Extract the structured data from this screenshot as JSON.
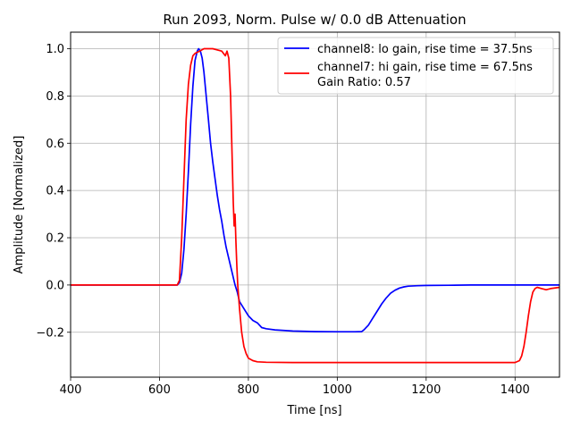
{
  "chart_data": {
    "type": "line",
    "title": "Run 2093, Norm. Pulse w/ 0.0 dB Attenuation",
    "xlabel": "Time [ns]",
    "ylabel": "Amplitude [Normalized]",
    "xlim": [
      400,
      1500
    ],
    "ylim": [
      -0.39,
      1.07
    ],
    "xticks": [
      400,
      600,
      800,
      1000,
      1200,
      1400
    ],
    "yticks": [
      -0.2,
      0.0,
      0.2,
      0.4,
      0.6,
      0.8,
      1.0
    ],
    "ytick_labels": [
      "−0.2",
      "0.0",
      "0.2",
      "0.4",
      "0.6",
      "0.8",
      "1.0"
    ],
    "grid": true,
    "legend_position": "top-right",
    "legend_extra": "Gain Ratio: 0.57",
    "series": [
      {
        "name": "channel8: lo gain, rise time = 37.5ns",
        "color": "#0000ff",
        "x": [
          400,
          600,
          640,
          645,
          650,
          655,
          660,
          665,
          670,
          675,
          680,
          685,
          688,
          692,
          696,
          700,
          705,
          710,
          715,
          720,
          725,
          730,
          735,
          740,
          745,
          750,
          755,
          760,
          765,
          770,
          775,
          780,
          790,
          800,
          810,
          820,
          830,
          840,
          860,
          900,
          950,
          1000,
          1040,
          1055,
          1060,
          1070,
          1080,
          1090,
          1100,
          1110,
          1120,
          1130,
          1140,
          1150,
          1160,
          1180,
          1200,
          1250,
          1300,
          1350,
          1400,
          1450,
          1500
        ],
        "y": [
          0.0,
          0.0,
          0.0,
          0.01,
          0.05,
          0.15,
          0.3,
          0.48,
          0.68,
          0.84,
          0.95,
          0.99,
          1.0,
          0.99,
          0.96,
          0.9,
          0.8,
          0.7,
          0.6,
          0.52,
          0.45,
          0.38,
          0.32,
          0.27,
          0.21,
          0.16,
          0.12,
          0.08,
          0.04,
          0.0,
          -0.03,
          -0.07,
          -0.1,
          -0.13,
          -0.15,
          -0.16,
          -0.18,
          -0.185,
          -0.19,
          -0.195,
          -0.197,
          -0.198,
          -0.198,
          -0.197,
          -0.19,
          -0.17,
          -0.14,
          -0.11,
          -0.08,
          -0.055,
          -0.035,
          -0.022,
          -0.013,
          -0.008,
          -0.005,
          -0.003,
          -0.002,
          -0.001,
          0.0,
          0.0,
          0.0,
          0.0,
          0.0
        ]
      },
      {
        "name": "channel7: hi gain, rise time = 67.5ns",
        "color": "#ff0000",
        "x": [
          400,
          600,
          640,
          645,
          650,
          655,
          660,
          665,
          670,
          675,
          680,
          690,
          700,
          720,
          740,
          748,
          752,
          756,
          760,
          764,
          766,
          768,
          770,
          772,
          774,
          776,
          778,
          780,
          785,
          790,
          795,
          800,
          810,
          820,
          840,
          900,
          1000,
          1100,
          1200,
          1300,
          1400,
          1410,
          1415,
          1420,
          1425,
          1430,
          1435,
          1440,
          1445,
          1450,
          1460,
          1470,
          1480,
          1500
        ],
        "y": [
          0.0,
          0.0,
          0.0,
          0.02,
          0.2,
          0.45,
          0.7,
          0.85,
          0.93,
          0.97,
          0.98,
          0.99,
          1.0,
          1.0,
          0.99,
          0.97,
          0.99,
          0.96,
          0.8,
          0.5,
          0.35,
          0.25,
          0.3,
          0.18,
          0.08,
          0.0,
          -0.05,
          -0.1,
          -0.2,
          -0.26,
          -0.29,
          -0.31,
          -0.32,
          -0.325,
          -0.327,
          -0.328,
          -0.328,
          -0.328,
          -0.328,
          -0.328,
          -0.328,
          -0.32,
          -0.3,
          -0.26,
          -0.2,
          -0.13,
          -0.07,
          -0.03,
          -0.015,
          -0.01,
          -0.015,
          -0.02,
          -0.015,
          -0.01
        ]
      }
    ]
  }
}
